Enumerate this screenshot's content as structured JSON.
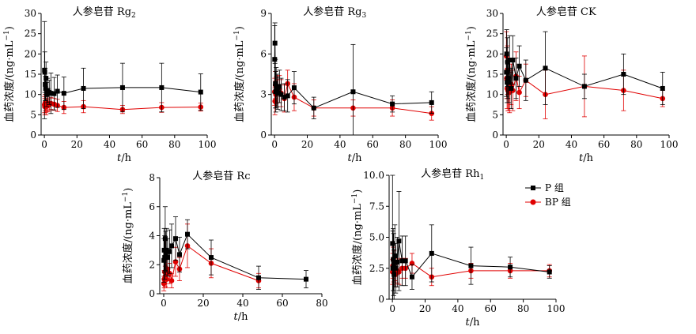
{
  "colors": {
    "P": "#000000",
    "BP": "#e00000",
    "axis": "#000000"
  },
  "legend": {
    "items": [
      {
        "label": "P 组",
        "series": "P",
        "marker": "square"
      },
      {
        "label": "BP 组",
        "series": "BP",
        "marker": "circle"
      }
    ]
  },
  "chart_data": [
    {
      "type": "line",
      "title": "人参皂苷 Rg",
      "title_sub": "2",
      "xlabel_italic": "t",
      "xlabel_unit": "/h",
      "ylabel": "血药浓度/(ng·mL",
      "ylabel_sup": "−1",
      "ylabel_tail": ")",
      "xlim": [
        -2,
        100
      ],
      "ylim": [
        0,
        30
      ],
      "xticks": [
        0,
        20,
        40,
        60,
        80,
        100
      ],
      "yticks": [
        0,
        5,
        10,
        15,
        20,
        25,
        30
      ],
      "xtick_labels": [
        "0",
        "20",
        "40",
        "60",
        "80",
        "100"
      ],
      "ytick_labels": [
        "0",
        "5",
        "10",
        "15",
        "20",
        "25",
        "30"
      ],
      "series": [
        {
          "key": "P",
          "x": [
            0.08,
            0.25,
            0.5,
            0.75,
            1,
            1.5,
            2,
            3,
            4,
            6,
            8,
            12,
            24,
            48,
            72,
            96
          ],
          "y": [
            16.0,
            15.5,
            12.5,
            11.5,
            14.0,
            10.0,
            11.0,
            10.5,
            10.3,
            10.2,
            10.8,
            10.3,
            11.5,
            11.7,
            11.7,
            10.6
          ],
          "err": [
            12.0,
            5.0,
            4.0,
            3.0,
            4.0,
            3.0,
            3.0,
            3.0,
            5.0,
            4.0,
            4.0,
            4.0,
            5.0,
            6.0,
            6.0,
            4.5
          ]
        },
        {
          "key": "BP",
          "x": [
            0.08,
            0.25,
            0.5,
            0.75,
            1,
            1.5,
            2,
            3,
            4,
            6,
            8,
            12,
            24,
            48,
            72,
            96
          ],
          "y": [
            7.5,
            7.0,
            8.0,
            7.5,
            7.0,
            8.0,
            7.2,
            7.5,
            7.8,
            7.6,
            7.3,
            6.8,
            7.0,
            6.3,
            6.8,
            6.9
          ],
          "err": [
            2.0,
            2.0,
            2.0,
            2.0,
            2.0,
            2.0,
            1.5,
            1.5,
            1.5,
            1.5,
            1.5,
            1.5,
            1.5,
            1.0,
            1.2,
            1.0
          ]
        }
      ]
    },
    {
      "type": "line",
      "title": "人参皂苷 Rg",
      "title_sub": "3",
      "xlabel_italic": "t",
      "xlabel_unit": "/h",
      "ylabel": "血药浓度/(ng·mL",
      "ylabel_sup": "−1",
      "ylabel_tail": ")",
      "xlim": [
        -2,
        100
      ],
      "ylim": [
        0,
        9
      ],
      "xticks": [
        0,
        20,
        40,
        60,
        80,
        100
      ],
      "yticks": [
        0,
        3,
        6,
        9
      ],
      "xtick_labels": [
        "0",
        "20",
        "40",
        "60",
        "80",
        "100"
      ],
      "ytick_labels": [
        "0",
        "3",
        "6",
        "9"
      ],
      "series": [
        {
          "key": "P",
          "x": [
            0.08,
            0.25,
            0.5,
            0.75,
            1,
            1.5,
            2,
            3,
            4,
            6,
            8,
            12,
            24,
            48,
            72,
            96
          ],
          "y": [
            5.6,
            6.8,
            3.8,
            3.2,
            3.5,
            3.3,
            3.1,
            3.6,
            3.0,
            2.8,
            2.9,
            3.5,
            2.0,
            3.2,
            2.3,
            2.4
          ],
          "err": [
            2.5,
            1.5,
            1.8,
            1.5,
            1.5,
            1.2,
            1.2,
            1.2,
            1.2,
            1.0,
            1.2,
            1.2,
            0.8,
            3.5,
            0.6,
            0.8
          ]
        },
        {
          "key": "BP",
          "x": [
            0.08,
            0.25,
            0.5,
            0.75,
            1,
            1.5,
            2,
            3,
            4,
            6,
            8,
            12,
            24,
            48,
            72,
            96
          ],
          "y": [
            3.2,
            2.5,
            3.7,
            3.0,
            3.3,
            3.1,
            3.4,
            3.4,
            3.1,
            2.7,
            3.8,
            2.8,
            2.0,
            2.0,
            2.0,
            1.6
          ],
          "err": [
            1.0,
            1.0,
            1.0,
            1.0,
            1.0,
            1.0,
            1.0,
            1.0,
            1.0,
            1.0,
            1.0,
            1.0,
            0.6,
            0.6,
            0.6,
            0.5
          ]
        }
      ]
    },
    {
      "type": "line",
      "title": "人参皂苷 CK",
      "title_sub": "",
      "xlabel_italic": "t",
      "xlabel_unit": "/h",
      "ylabel": "血药浓度/(ng·mL",
      "ylabel_sup": "−1",
      "ylabel_tail": ")",
      "xlim": [
        -2,
        100
      ],
      "ylim": [
        0,
        30
      ],
      "xticks": [
        0,
        20,
        40,
        60,
        80,
        100
      ],
      "yticks": [
        0,
        5,
        10,
        15,
        20,
        25,
        30
      ],
      "xtick_labels": [
        "0",
        "20",
        "40",
        "60",
        "80",
        "100"
      ],
      "ytick_labels": [
        "0",
        "5",
        "10",
        "15",
        "20",
        "25",
        "30"
      ],
      "series": [
        {
          "key": "P",
          "x": [
            0.08,
            0.25,
            0.5,
            0.75,
            1,
            1.5,
            2,
            3,
            4,
            6,
            8,
            12,
            24,
            48,
            72,
            96
          ],
          "y": [
            15.5,
            20.0,
            13.0,
            18.0,
            14.0,
            13.0,
            18.5,
            11.5,
            18.5,
            14.0,
            17.0,
            13.5,
            16.5,
            12.0,
            15.0,
            11.5
          ],
          "err": [
            6.0,
            6.0,
            5.0,
            6.0,
            5.0,
            5.0,
            6.0,
            5.0,
            6.0,
            5.0,
            5.0,
            5.0,
            9.0,
            3.0,
            5.0,
            4.0
          ]
        },
        {
          "key": "BP",
          "x": [
            0.08,
            0.25,
            0.5,
            0.75,
            1,
            1.5,
            2,
            3,
            4,
            6,
            8,
            12,
            24,
            48,
            72,
            96
          ],
          "y": [
            19.5,
            14.0,
            11.5,
            16.0,
            11.0,
            11.0,
            10.5,
            12.5,
            11.0,
            14.5,
            10.5,
            13.5,
            10.0,
            12.0,
            11.0,
            9.0
          ],
          "err": [
            6.0,
            5.0,
            5.0,
            6.0,
            5.0,
            5.0,
            5.0,
            5.0,
            5.0,
            6.0,
            4.0,
            4.0,
            6.0,
            7.5,
            5.0,
            2.0
          ]
        }
      ]
    },
    {
      "type": "line",
      "title": "人参皂苷 Rc",
      "title_sub": "",
      "xlabel_italic": "t",
      "xlabel_unit": "/h",
      "ylabel": "血药浓度/(ng·mL",
      "ylabel_sup": "−1",
      "ylabel_tail": ")",
      "xlim": [
        -2,
        80
      ],
      "ylim": [
        0,
        8
      ],
      "xticks": [
        0,
        20,
        40,
        60,
        80
      ],
      "yticks": [
        0,
        2,
        4,
        6,
        8
      ],
      "xtick_labels": [
        "0",
        "20",
        "40",
        "60",
        "80"
      ],
      "ytick_labels": [
        "0",
        "2",
        "4",
        "6",
        "8"
      ],
      "series": [
        {
          "key": "P",
          "x": [
            0.08,
            0.25,
            0.5,
            0.75,
            1,
            1.5,
            2,
            3,
            4,
            6,
            8,
            12,
            24,
            48,
            72
          ],
          "y": [
            2.3,
            3.0,
            2.5,
            3.8,
            2.8,
            3.0,
            2.5,
            2.9,
            3.3,
            3.8,
            2.7,
            4.1,
            2.5,
            1.1,
            1.0
          ],
          "err": [
            1.5,
            1.5,
            1.5,
            2.2,
            1.5,
            1.5,
            1.3,
            1.5,
            1.5,
            1.5,
            1.2,
            1.0,
            1.2,
            0.8,
            0.6
          ]
        },
        {
          "key": "BP",
          "x": [
            0.08,
            0.25,
            0.5,
            0.75,
            1,
            1.5,
            2,
            3,
            4,
            6,
            8,
            12,
            24,
            48
          ],
          "y": [
            0.7,
            1.0,
            1.5,
            1.2,
            2.5,
            1.0,
            1.7,
            1.4,
            0.9,
            2.2,
            1.7,
            3.3,
            2.1,
            0.9
          ],
          "err": [
            0.5,
            0.6,
            0.8,
            0.7,
            1.2,
            0.6,
            0.8,
            0.7,
            0.5,
            1.0,
            0.8,
            1.5,
            1.0,
            0.5
          ]
        }
      ]
    },
    {
      "type": "line",
      "title": "人参皂苷 Rh",
      "title_sub": "1",
      "xlabel_italic": "t",
      "xlabel_unit": "/h",
      "ylabel": "血药浓度/(ng·mL",
      "ylabel_sup": "−1",
      "ylabel_tail": ")",
      "xlim": [
        -2,
        100
      ],
      "ylim": [
        0,
        10
      ],
      "xticks": [
        0,
        20,
        40,
        60,
        80,
        100
      ],
      "yticks": [
        0,
        2.5,
        5,
        7.5,
        10
      ],
      "xtick_labels": [
        "0",
        "20",
        "40",
        "60",
        "80",
        "100"
      ],
      "ytick_labels": [
        "0",
        "2.5",
        "5.0",
        "7.5",
        "10.0"
      ],
      "series": [
        {
          "key": "P",
          "x": [
            0.08,
            0.25,
            0.5,
            0.75,
            1,
            1.5,
            2,
            3,
            4,
            6,
            8,
            12,
            24,
            48,
            72,
            96
          ],
          "y": [
            4.5,
            2.5,
            3.2,
            2.8,
            2.0,
            3.5,
            2.5,
            3.0,
            4.7,
            3.1,
            3.1,
            1.8,
            3.7,
            2.7,
            2.6,
            2.2
          ],
          "err": [
            5.5,
            3.0,
            2.5,
            2.5,
            2.0,
            2.5,
            2.0,
            2.0,
            4.0,
            2.0,
            2.0,
            1.0,
            2.3,
            1.5,
            0.8,
            0.5
          ]
        },
        {
          "key": "BP",
          "x": [
            0.08,
            0.25,
            0.5,
            0.75,
            1,
            1.5,
            2,
            3,
            4,
            6,
            8,
            12,
            24,
            48,
            72,
            96
          ],
          "y": [
            2.2,
            2.7,
            3.2,
            2.4,
            2.9,
            2.5,
            2.0,
            2.3,
            2.2,
            2.5,
            2.5,
            2.9,
            1.8,
            2.3,
            2.3,
            2.3
          ],
          "err": [
            1.0,
            1.0,
            1.0,
            1.0,
            1.0,
            1.0,
            1.0,
            1.0,
            1.0,
            0.8,
            0.8,
            0.8,
            0.7,
            0.6,
            0.6,
            0.5
          ]
        }
      ]
    }
  ]
}
